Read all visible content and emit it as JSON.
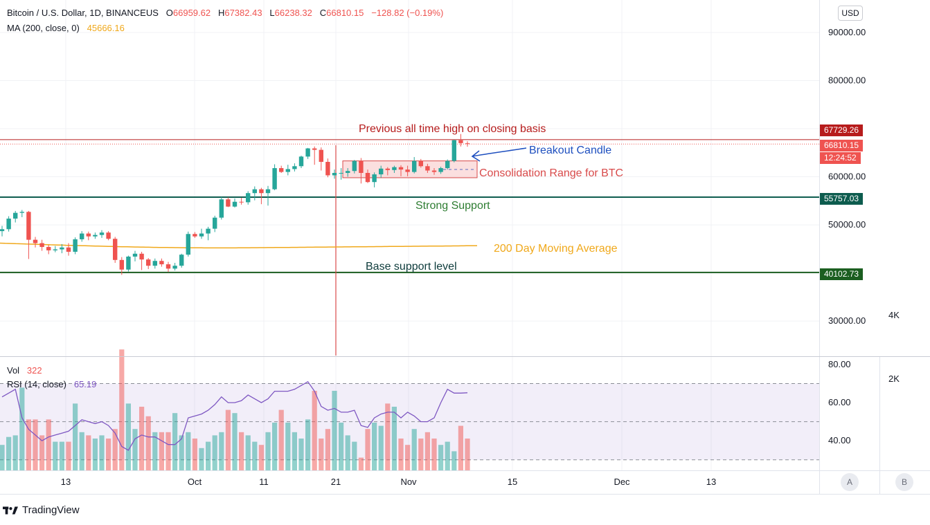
{
  "header": {
    "symbol": "Bitcoin / U.S. Dollar, 1D, BINANCEUS",
    "open_label": "O",
    "open": "66959.62",
    "high_label": "H",
    "high": "67382.43",
    "low_label": "L",
    "low": "66238.32",
    "close_label": "C",
    "close": "66810.15",
    "change": "−128.82 (−0.19%)",
    "ma_label": "MA (200, close, 0)",
    "ma_value": "45666.16"
  },
  "lower_legend": {
    "vol_label": "Vol",
    "vol_value": "322",
    "rsi_label": "RSI (14, close)",
    "rsi_value": "65.19"
  },
  "currency_button": "USD",
  "scale_buttons": [
    "A",
    "B"
  ],
  "brand": "TradingView",
  "colors": {
    "up": "#26a69a",
    "down": "#ef5350",
    "ma": "#f0a81a",
    "rsi": "#7e57c2",
    "support": "#0d5c4e",
    "ath": "#b71c1c",
    "annotation_blue": "#1e4fbf"
  },
  "chart_data": [
    {
      "type": "candlestick",
      "title": "Bitcoin / U.S. Dollar, 1D, BINANCEUS",
      "x_tick_labels": [
        "13",
        "Oct",
        "11",
        "21",
        "Nov",
        "15",
        "Dec",
        "13"
      ],
      "y_tick_labels": [
        "90000.00",
        "80000.00",
        "60000.00",
        "50000.00",
        "30000.00"
      ],
      "ylim": [
        23000,
        93000
      ],
      "grid": true,
      "candles": [
        [
          48700,
          49800,
          47600,
          49100
        ],
        [
          49100,
          51800,
          48600,
          51300
        ],
        [
          51300,
          52900,
          50500,
          52500
        ],
        [
          52500,
          53100,
          51600,
          52700
        ],
        [
          52700,
          52900,
          42900,
          46900
        ],
        [
          46900,
          47500,
          45300,
          46200
        ],
        [
          46200,
          46900,
          44600,
          45400
        ],
        [
          45400,
          45800,
          43900,
          44700
        ],
        [
          44700,
          45600,
          44300,
          44900
        ],
        [
          44900,
          46000,
          44100,
          45300
        ],
        [
          45300,
          46200,
          43600,
          44400
        ],
        [
          44400,
          47400,
          43900,
          47000
        ],
        [
          47000,
          48700,
          46500,
          48200
        ],
        [
          48200,
          48600,
          46800,
          47600
        ],
        [
          47600,
          48400,
          47100,
          47900
        ],
        [
          47900,
          48900,
          47300,
          48400
        ],
        [
          48400,
          48700,
          46800,
          47100
        ],
        [
          47100,
          47500,
          42100,
          42700
        ],
        [
          42700,
          43300,
          39600,
          40700
        ],
        [
          40700,
          43600,
          40300,
          43400
        ],
        [
          43400,
          44600,
          42400,
          44000
        ],
        [
          44000,
          44400,
          40600,
          42800
        ],
        [
          42800,
          43100,
          40800,
          41500
        ],
        [
          41500,
          43000,
          40900,
          42500
        ],
        [
          42500,
          43000,
          41300,
          41800
        ],
        [
          41800,
          42300,
          40200,
          40900
        ],
        [
          40900,
          42100,
          40500,
          41500
        ],
        [
          41500,
          44000,
          41100,
          43800
        ],
        [
          43800,
          48600,
          43400,
          48100
        ],
        [
          48100,
          48500,
          47300,
          47600
        ],
        [
          47600,
          49200,
          47100,
          48200
        ],
        [
          48200,
          49600,
          46800,
          49200
        ],
        [
          49200,
          51900,
          48500,
          51500
        ],
        [
          51500,
          55800,
          51100,
          55300
        ],
        [
          55300,
          55700,
          53700,
          53800
        ],
        [
          53800,
          55500,
          53600,
          54800
        ],
        [
          54800,
          55600,
          54200,
          54700
        ],
        [
          54700,
          57000,
          54200,
          56600
        ],
        [
          56600,
          58000,
          55100,
          57400
        ],
        [
          57400,
          57700,
          54300,
          56600
        ],
        [
          56600,
          58100,
          54000,
          57400
        ],
        [
          57400,
          62600,
          57200,
          61800
        ],
        [
          61800,
          62300,
          60800,
          61000
        ],
        [
          61000,
          62500,
          60300,
          61600
        ],
        [
          61600,
          62800,
          61100,
          62200
        ],
        [
          62200,
          64400,
          61800,
          64200
        ],
        [
          64200,
          66000,
          63700,
          65900
        ],
        [
          65900,
          66300,
          62500,
          65600
        ],
        [
          65600,
          66100,
          61300,
          63100
        ],
        [
          63100,
          63800,
          59900,
          60300
        ],
        [
          60300,
          61500,
          59600,
          60800
        ],
        [
          60800,
          61800,
          59400,
          60800
        ],
        [
          60800,
          61800,
          60000,
          61200
        ],
        [
          61200,
          63500,
          60700,
          63300
        ],
        [
          63300,
          63900,
          58600,
          60800
        ],
        [
          60800,
          61500,
          58700,
          58900
        ],
        [
          58900,
          60900,
          57800,
          60500
        ],
        [
          60500,
          62300,
          59800,
          61700
        ],
        [
          61700,
          62000,
          60300,
          61400
        ],
        [
          61400,
          62300,
          60800,
          62000
        ],
        [
          62000,
          62400,
          60100,
          61500
        ],
        [
          61500,
          62300,
          60100,
          61000
        ],
        [
          61000,
          64100,
          60700,
          63300
        ],
        [
          63300,
          63700,
          61900,
          62200
        ],
        [
          62200,
          62700,
          60800,
          61300
        ],
        [
          61300,
          61800,
          60400,
          61000
        ],
        [
          61000,
          62100,
          60600,
          61800
        ],
        [
          61800,
          63600,
          61500,
          63300
        ],
        [
          63300,
          67700,
          63000,
          67600
        ],
        [
          67600,
          68900,
          66300,
          67000
        ],
        [
          66960,
          67380,
          66240,
          66810
        ]
      ],
      "moving_average": {
        "label": "MA (200, close, 0)",
        "start": 46200,
        "dip_index": 20,
        "dip": 45200,
        "end": 45666
      },
      "price_levels": [
        {
          "value": "67729.26",
          "label": "Previous all time high on closing basis"
        },
        {
          "value": "66810.15",
          "countdown": "12:24:52"
        },
        {
          "value": "55757.03",
          "label": "Strong Support"
        },
        {
          "value": "40102.73",
          "label": "Base support level"
        }
      ],
      "annotations": {
        "breakout": "Breakout Candle",
        "consolidation": "Consolidation Range for BTC",
        "consolidation_range": [
          59800,
          63300
        ],
        "ma_label": "200 Day Moving Average"
      }
    },
    {
      "type": "bar+line",
      "title": "Vol / RSI (14, close)",
      "y_tick_labels": [
        "80.00",
        "60.00",
        "40.00"
      ],
      "vol_tick_labels": [
        "4K",
        "2K"
      ],
      "rsi_ylim": [
        25,
        83
      ],
      "rsi_bands": [
        70,
        50,
        30
      ],
      "volume_k": [
        0.8,
        1.05,
        1.1,
        2.6,
        1.6,
        1.6,
        1.1,
        1.6,
        0.9,
        0.9,
        0.9,
        2.1,
        1.2,
        1.1,
        1.0,
        1.1,
        1.0,
        1.3,
        3.8,
        2.1,
        1.3,
        2.0,
        1.7,
        1.2,
        1.2,
        1.2,
        1.8,
        1.1,
        1.2,
        1.0,
        0.7,
        0.9,
        1.1,
        1.2,
        1.9,
        1.8,
        1.2,
        1.1,
        0.9,
        0.8,
        1.2,
        1.5,
        1.9,
        1.5,
        1.2,
        1.0,
        1.6,
        2.5,
        1.0,
        1.3,
        2.5,
        1.5,
        1.1,
        0.9,
        0.4,
        1.3,
        1.5,
        1.4,
        2.1,
        2.0,
        1.0,
        0.8,
        1.3,
        1.0,
        1.2,
        1.0,
        0.8,
        0.9,
        0.6,
        1.4,
        1.0
      ],
      "rsi": [
        63,
        65,
        67,
        52,
        46,
        43,
        40,
        42,
        43,
        44,
        45,
        48,
        51,
        50,
        49,
        50,
        48,
        44,
        37,
        35,
        41,
        43,
        42,
        42,
        40,
        38,
        38,
        41,
        52,
        53,
        54,
        56,
        59,
        63,
        60,
        60,
        61,
        64,
        62,
        60,
        62,
        66,
        66,
        66,
        67,
        69,
        71,
        66,
        58,
        56,
        57,
        55,
        55,
        56,
        48,
        47,
        52,
        54,
        55,
        55,
        52,
        55,
        53,
        50,
        50,
        52,
        60,
        67,
        65,
        65,
        65.19
      ]
    }
  ]
}
